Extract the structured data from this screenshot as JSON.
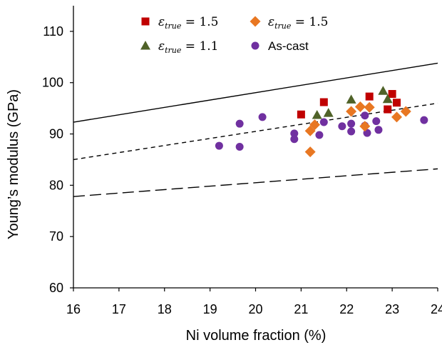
{
  "chart_data": {
    "type": "scatter",
    "xlabel": "Ni volume fraction (%)",
    "ylabel": "Young’s modulus (GPa)",
    "xlim": [
      16,
      24
    ],
    "ylim": [
      60,
      115
    ],
    "xticks": [
      "16",
      "17",
      "18",
      "19",
      "20",
      "21",
      "22",
      "23",
      "24"
    ],
    "yticks": [
      "60",
      "70",
      "80",
      "90",
      "100",
      "110"
    ],
    "grid": false,
    "legend_position": "top",
    "series": [
      {
        "name": "ε_true = 1.5",
        "legend_symbol": "ε",
        "legend_sub": "true",
        "legend_value": " = 1.5",
        "marker": "square",
        "color": "#c00000",
        "points": [
          [
            21.0,
            93.8
          ],
          [
            21.5,
            96.2
          ],
          [
            22.5,
            97.3
          ],
          [
            22.9,
            94.8
          ],
          [
            23.0,
            97.8
          ],
          [
            23.1,
            96.1
          ]
        ]
      },
      {
        "name": "ε_true = 1.5",
        "legend_symbol": "ε",
        "legend_sub": "true",
        "legend_value": " = 1.5",
        "marker": "diamond",
        "color": "#e87722",
        "points": [
          [
            21.2,
            86.5
          ],
          [
            21.2,
            90.6
          ],
          [
            21.3,
            91.8
          ],
          [
            22.1,
            94.4
          ],
          [
            22.3,
            95.3
          ],
          [
            22.4,
            91.5
          ],
          [
            22.5,
            95.2
          ],
          [
            23.1,
            93.3
          ],
          [
            23.3,
            94.4
          ]
        ]
      },
      {
        "name": "ε_true = 1.1",
        "legend_symbol": "ε",
        "legend_sub": "true",
        "legend_value": " = 1.1",
        "marker": "triangle",
        "color": "#4f6228",
        "points": [
          [
            21.35,
            93.7
          ],
          [
            21.6,
            94.1
          ],
          [
            22.1,
            96.7
          ],
          [
            22.8,
            98.4
          ],
          [
            22.9,
            96.8
          ]
        ]
      },
      {
        "name": "As-cast",
        "marker": "circle",
        "color": "#7030a0",
        "points": [
          [
            19.2,
            87.7
          ],
          [
            19.65,
            87.5
          ],
          [
            19.65,
            92.0
          ],
          [
            20.15,
            93.3
          ],
          [
            20.85,
            90.1
          ],
          [
            20.85,
            89.0
          ],
          [
            21.4,
            89.8
          ],
          [
            21.5,
            92.3
          ],
          [
            21.9,
            91.5
          ],
          [
            22.1,
            92.0
          ],
          [
            22.1,
            90.5
          ],
          [
            22.4,
            93.6
          ],
          [
            22.45,
            90.2
          ],
          [
            22.4,
            91.6
          ],
          [
            22.65,
            92.5
          ],
          [
            22.7,
            90.8
          ],
          [
            23.7,
            92.7
          ]
        ]
      }
    ],
    "lines": [
      {
        "style": "solid",
        "x": [
          16,
          24
        ],
        "y": [
          92.3,
          103.8
        ]
      },
      {
        "style": "short-dash",
        "x": [
          16,
          24
        ],
        "y": [
          85.0,
          96.0
        ]
      },
      {
        "style": "long-dash",
        "x": [
          16,
          24
        ],
        "y": [
          77.8,
          83.2
        ]
      }
    ]
  }
}
